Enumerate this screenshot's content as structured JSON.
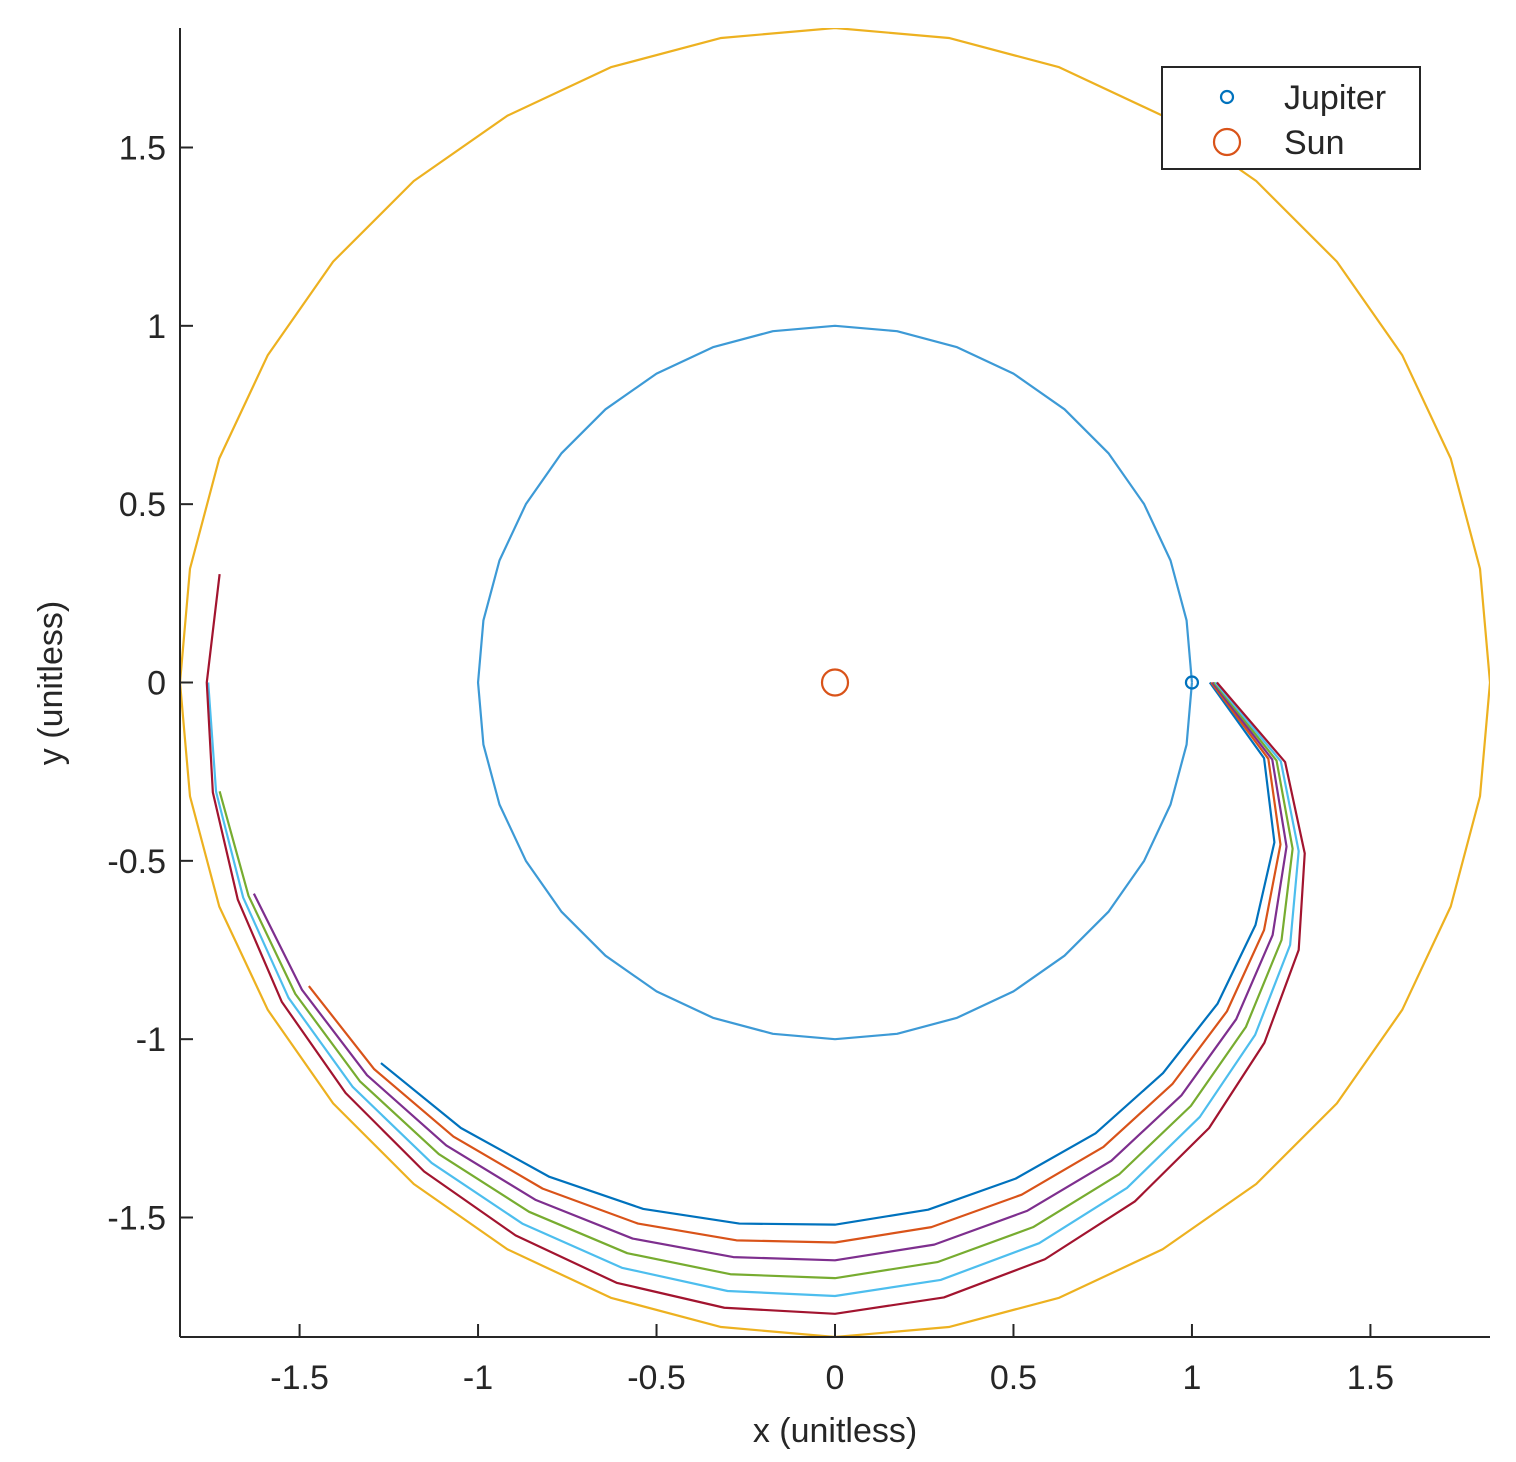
{
  "chart_data": {
    "type": "line",
    "xlabel": "x (unitless)",
    "ylabel": "y (unitless)",
    "xlim": [
      -1.835,
      1.835
    ],
    "ylim": [
      -1.835,
      1.835
    ],
    "xticks": [
      -1.5,
      -1,
      -0.5,
      0,
      0.5,
      1,
      1.5
    ],
    "yticks": [
      -1.5,
      -1,
      -0.5,
      0,
      0.5,
      1,
      1.5
    ],
    "grid": false,
    "legend_position": "northeast",
    "series": [
      {
        "mode": "line",
        "color": "#3d9ad6",
        "x": [
          1,
          0.985,
          0.94,
          0.866,
          0.766,
          0.643,
          0.5,
          0.342,
          0.174,
          0,
          -0.174,
          -0.342,
          -0.5,
          -0.643,
          -0.766,
          -0.866,
          -0.94,
          -0.985,
          -1,
          -0.985,
          -0.94,
          -0.866,
          -0.766,
          -0.643,
          -0.5,
          -0.342,
          -0.174,
          0,
          0.174,
          0.342,
          0.5,
          0.643,
          0.766,
          0.866,
          0.94,
          0.985,
          1
        ],
        "y": [
          0,
          0.174,
          0.342,
          0.5,
          0.643,
          0.766,
          0.866,
          0.94,
          0.985,
          1,
          0.985,
          0.94,
          0.866,
          0.766,
          0.643,
          0.5,
          0.342,
          0.174,
          0,
          -0.174,
          -0.342,
          -0.5,
          -0.643,
          -0.766,
          -0.866,
          -0.94,
          -0.985,
          -1,
          -0.985,
          -0.94,
          -0.866,
          -0.766,
          -0.643,
          -0.5,
          -0.342,
          -0.174,
          0
        ]
      },
      {
        "mode": "line",
        "color": "#edb120",
        "x": [
          1.835,
          1.807,
          1.725,
          1.589,
          1.406,
          1.18,
          0.918,
          0.628,
          0.319,
          0,
          -0.319,
          -0.628,
          -0.918,
          -1.18,
          -1.406,
          -1.589,
          -1.725,
          -1.807,
          -1.835,
          -1.807,
          -1.725,
          -1.589,
          -1.406,
          -1.18,
          -0.918,
          -0.628,
          -0.319,
          0,
          0.319,
          0.628,
          0.918,
          1.18,
          1.406,
          1.589,
          1.725,
          1.807,
          1.835
        ],
        "y": [
          0,
          0.319,
          0.628,
          0.918,
          1.18,
          1.406,
          1.589,
          1.725,
          1.807,
          1.835,
          1.807,
          1.725,
          1.589,
          1.406,
          1.18,
          0.918,
          0.628,
          0.319,
          0,
          -0.319,
          -0.628,
          -0.918,
          -1.18,
          -1.406,
          -1.589,
          -1.725,
          -1.807,
          -1.835,
          -1.807,
          -1.725,
          -1.589,
          -1.406,
          -1.18,
          -0.918,
          -0.628,
          -0.319,
          0
        ]
      },
      {
        "mode": "line",
        "color": "#0072bd",
        "x": [
          1.05,
          1.202,
          1.231,
          1.178,
          1.072,
          0.919,
          0.73,
          0.506,
          0.261,
          0,
          -0.268,
          -0.537,
          -0.8,
          -1.048,
          -1.272
        ],
        "y": [
          0,
          -0.212,
          -0.448,
          -0.68,
          -0.9,
          -1.095,
          -1.264,
          -1.391,
          -1.478,
          -1.52,
          -1.517,
          -1.476,
          -1.386,
          -1.249,
          -1.067
        ]
      },
      {
        "mode": "line",
        "color": "#d95319",
        "x": [
          1.054,
          1.214,
          1.248,
          1.202,
          1.098,
          0.945,
          0.752,
          0.523,
          0.27,
          0,
          -0.276,
          -0.552,
          -0.819,
          -1.069,
          -1.291,
          -1.474
        ],
        "y": [
          0,
          -0.214,
          -0.454,
          -0.694,
          -0.922,
          -1.126,
          -1.302,
          -1.436,
          -1.527,
          -1.57,
          -1.564,
          -1.517,
          -1.419,
          -1.273,
          -1.084,
          -0.851
        ]
      },
      {
        "mode": "line",
        "color": "#7e2f8e",
        "x": [
          1.058,
          1.225,
          1.265,
          1.226,
          1.124,
          0.971,
          0.774,
          0.539,
          0.278,
          0,
          -0.285,
          -0.567,
          -0.838,
          -1.089,
          -1.311,
          -1.493,
          -1.628
        ],
        "y": [
          0,
          -0.216,
          -0.46,
          -0.708,
          -0.944,
          -1.157,
          -1.341,
          -1.481,
          -1.576,
          -1.62,
          -1.611,
          -1.559,
          -1.451,
          -1.298,
          -1.101,
          -0.862,
          -0.592
        ]
      },
      {
        "mode": "line",
        "color": "#77ac30",
        "x": [
          1.062,
          1.237,
          1.282,
          1.251,
          1.151,
          0.997,
          0.796,
          0.555,
          0.287,
          0,
          -0.293,
          -0.582,
          -0.857,
          -1.11,
          -1.331,
          -1.512,
          -1.643,
          -1.724
        ],
        "y": [
          0,
          -0.219,
          -0.466,
          -0.722,
          -0.966,
          -1.187,
          -1.379,
          -1.527,
          -1.625,
          -1.67,
          -1.659,
          -1.6,
          -1.484,
          -1.322,
          -1.118,
          -0.873,
          -0.598,
          -0.305
        ]
      },
      {
        "mode": "line",
        "color": "#4dbeee",
        "x": [
          1.066,
          1.249,
          1.299,
          1.275,
          1.177,
          1.022,
          0.818,
          0.572,
          0.296,
          0,
          -0.301,
          -0.597,
          -0.876,
          -1.13,
          -1.351,
          -1.531,
          -1.658,
          -1.734,
          -1.756
        ],
        "y": [
          0,
          -0.221,
          -0.473,
          -0.736,
          -0.988,
          -1.218,
          -1.417,
          -1.572,
          -1.675,
          -1.72,
          -1.706,
          -1.641,
          -1.517,
          -1.347,
          -1.134,
          -0.884,
          -0.603,
          -0.306,
          0
        ]
      },
      {
        "mode": "line",
        "color": "#a2142f",
        "x": [
          1.07,
          1.261,
          1.316,
          1.299,
          1.203,
          1.048,
          0.84,
          0.588,
          0.305,
          0,
          -0.31,
          -0.612,
          -0.895,
          -1.151,
          -1.371,
          -1.55,
          -1.673,
          -1.743,
          -1.76,
          -1.724
        ],
        "y": [
          0,
          -0.223,
          -0.479,
          -0.75,
          -1.01,
          -1.249,
          -1.455,
          -1.617,
          -1.724,
          -1.77,
          -1.753,
          -1.683,
          -1.55,
          -1.371,
          -1.151,
          -0.895,
          -0.609,
          -0.308,
          0,
          0.304
        ]
      },
      {
        "mode": "marker",
        "name": "Jupiter",
        "color": "#0072bd",
        "marker": "circle",
        "marker_size": 6,
        "x": [
          1
        ],
        "y": [
          0
        ]
      },
      {
        "mode": "marker",
        "name": "Sun",
        "color": "#d95319",
        "marker": "circle",
        "marker_size": 13,
        "x": [
          0
        ],
        "y": [
          0
        ]
      }
    ]
  }
}
